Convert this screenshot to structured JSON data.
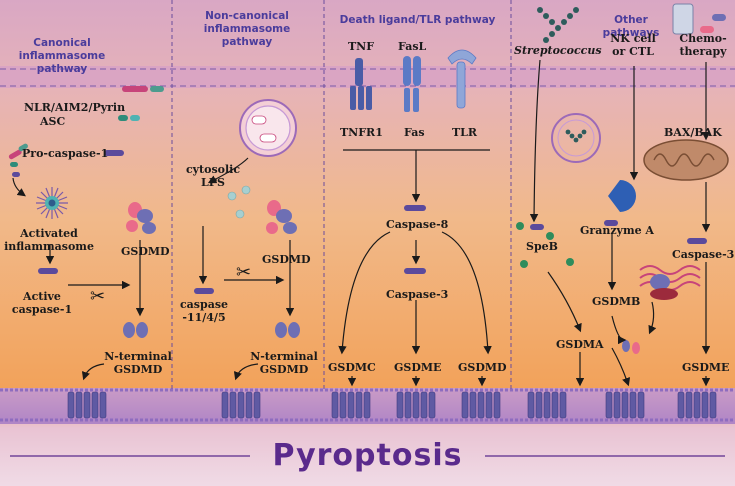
{
  "headers": {
    "canonical": "Canonical inflammasome pathway",
    "noncanonical": "Non-canonical inflammasome pathway",
    "death": "Death ligand/TLR pathway",
    "other": "Other pathways"
  },
  "canonical": {
    "nlr": "NLR/AIM2/Pyrin",
    "asc": "ASC",
    "procasp": "Pro-caspase-1",
    "activated1": "Activated",
    "activated2": "inflammasome",
    "gsdmd": "GSDMD",
    "active1": "Active",
    "active2": "caspase-1",
    "nterm1": "N-terminal",
    "nterm2": "GSDMD"
  },
  "noncanonical": {
    "lps1": "cytosolic",
    "lps2": "LPS",
    "gsdmd": "GSDMD",
    "casp1": "caspase",
    "casp2": "-11/4/5",
    "nterm1": "N-terminal",
    "nterm2": "GSDMD"
  },
  "death": {
    "tnf": "TNF",
    "fasl": "FasL",
    "tnfr1": "TNFR1",
    "fas": "Fas",
    "tlr": "TLR",
    "casp8": "Caspase-8",
    "casp3": "Caspase-3",
    "gsdmc": "GSDMC",
    "gsdme": "GSDME",
    "gsdmd": "GSDMD"
  },
  "other": {
    "strep": "Streptococcus",
    "nk1": "NK cell",
    "nk2": "or CTL",
    "chemo1": "Chemo-",
    "chemo2": "therapy",
    "bax": "BAX/BAK",
    "speb": "SpeB",
    "granzyme": "Granzyme A",
    "casp3": "Caspase-3",
    "gsdmb": "GSDMB",
    "gsdma": "GSDMA",
    "gsdme": "GSDME"
  },
  "footer": "Pyroptosis",
  "colors": {
    "header_text": "#4a3c9c",
    "footer_text": "#5a2a8c",
    "caspase_bar": "#5b4a9c",
    "gsdm_pink": "#e96a8a",
    "gsdm_blue": "#6e6fb4",
    "pore": "#5f5aa3"
  }
}
